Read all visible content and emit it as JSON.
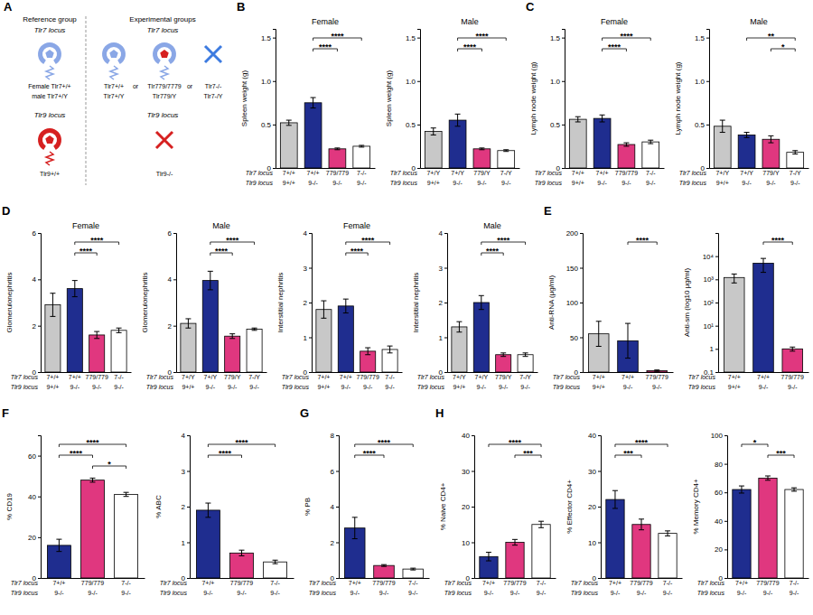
{
  "diagram": {
    "panel_label": "A",
    "reference": {
      "title": "Reference group",
      "tlr7_locus": "Tlr7 locus",
      "tlr7_genotypes": [
        "Female Tlr7+/+",
        "male Tlr7+/Y"
      ],
      "tlr9_locus": "Tlr9 locus",
      "tlr9_genotype": "Tlr9+/+"
    },
    "experimental": {
      "title": "Experimental groups",
      "tlr7_locus": "Tlr7 locus",
      "tlr7_genotypes": [
        [
          "Tlr7+/+",
          "Tlr7+/Y"
        ],
        [
          "Tlr779/7779",
          "Tlr779/Y"
        ],
        [
          "Tlr7-/-",
          "Tlr7-/Y"
        ]
      ],
      "or": "or",
      "tlr9_locus": "Tlr9 locus",
      "tlr9_genotype": "Tlr9-/-"
    }
  },
  "chart_data": [
    {
      "type": "bar",
      "panel_label": "B",
      "title": "Female",
      "y_label": "Spleen weight (g)",
      "row_labels": [
        "Tlr7 locus",
        "Tlr9 locus"
      ],
      "categories": [
        "7+/+",
        "7+/+",
        "779/779",
        "7-/-"
      ],
      "categories2": [
        "9+/+",
        "9-/-",
        "9-/-",
        "9-/-"
      ],
      "values": [
        0.52,
        0.75,
        0.22,
        0.25
      ],
      "errors": [
        0.03,
        0.06,
        0.01,
        0.01
      ],
      "colors": [
        "#c8c8c8",
        "#1f2d8f",
        "#e0377f",
        "#ffffff"
      ],
      "ylim": [
        0,
        1.6
      ],
      "yticks": [
        0,
        0.5,
        {
          "value": 1,
          "label": "1.0"
        },
        1.5
      ],
      "significance": [
        {
          "from": 1,
          "to": 3,
          "label": "****"
        },
        {
          "from": 1,
          "to": 2,
          "label": "****"
        }
      ]
    },
    {
      "type": "bar",
      "title": "Male",
      "y_label": "Spleen weight (g)",
      "row_labels": [
        "Tlr7 locus",
        "Tlr9 locus"
      ],
      "categories": [
        "7+/Y",
        "7+/Y",
        "779/Y",
        "7-/Y"
      ],
      "categories2": [
        "9+/+",
        "9-/-",
        "9-/-",
        "9-/-"
      ],
      "values": [
        0.42,
        0.55,
        0.22,
        0.2
      ],
      "errors": [
        0.04,
        0.07,
        0.01,
        0.01
      ],
      "colors": [
        "#c8c8c8",
        "#1f2d8f",
        "#e0377f",
        "#ffffff"
      ],
      "ylim": [
        0,
        1.6
      ],
      "yticks": [
        0,
        0.5,
        {
          "value": 1,
          "label": "1.0"
        },
        1.5
      ],
      "significance": [
        {
          "from": 1,
          "to": 3,
          "label": "****"
        },
        {
          "from": 1,
          "to": 2,
          "label": "****"
        }
      ]
    },
    {
      "type": "bar",
      "panel_label": "C",
      "title": "Female",
      "y_label": "Lymph node weight (g)",
      "row_labels": [
        "Tlr7 locus",
        "Tlr9 locus"
      ],
      "categories": [
        "7+/+",
        "7+/+",
        "779/779",
        "7-/-"
      ],
      "categories2": [
        "9+/+",
        "9-/-",
        "9-/-",
        "9-/-"
      ],
      "values": [
        0.56,
        0.57,
        0.27,
        0.3
      ],
      "errors": [
        0.03,
        0.04,
        0.02,
        0.02
      ],
      "colors": [
        "#c8c8c8",
        "#1f2d8f",
        "#e0377f",
        "#ffffff"
      ],
      "ylim": [
        0,
        1.6
      ],
      "yticks": [
        0,
        0.5,
        {
          "value": 1,
          "label": "1.0"
        },
        1.5
      ],
      "significance": [
        {
          "from": 1,
          "to": 3,
          "label": "****"
        },
        {
          "from": 1,
          "to": 2,
          "label": "****"
        }
      ]
    },
    {
      "type": "bar",
      "title": "Male",
      "y_label": "Lymph node weight (g)",
      "row_labels": [
        "Tlr7 locus",
        "Tlr9 locus"
      ],
      "categories": [
        "7+/Y",
        "7+/Y",
        "779/Y",
        "7-/Y"
      ],
      "categories2": [
        "9+/+",
        "9-/-",
        "9-/-",
        "9-/-"
      ],
      "values": [
        0.48,
        0.38,
        0.33,
        0.18
      ],
      "errors": [
        0.07,
        0.03,
        0.04,
        0.02
      ],
      "colors": [
        "#c8c8c8",
        "#1f2d8f",
        "#e0377f",
        "#ffffff"
      ],
      "ylim": [
        0,
        1.6
      ],
      "yticks": [
        0,
        0.5,
        {
          "value": 1,
          "label": "1.0"
        },
        1.5
      ],
      "significance": [
        {
          "from": 1,
          "to": 3,
          "label": "**"
        },
        {
          "from": 2,
          "to": 3,
          "label": "*"
        }
      ]
    },
    {
      "type": "bar",
      "panel_label": "D",
      "title": "Female",
      "y_label": "Glomerulonephritis",
      "row_labels": [
        "Tlr7 locus",
        "Tlr9 locus"
      ],
      "categories": [
        "7+/+",
        "7+/+",
        "779/779",
        "7-/-"
      ],
      "categories2": [
        "9+/+",
        "9-/-",
        "9-/-",
        "9-/-"
      ],
      "values": [
        2.9,
        3.6,
        1.6,
        1.8
      ],
      "errors": [
        0.5,
        0.35,
        0.15,
        0.1
      ],
      "colors": [
        "#c8c8c8",
        "#1f2d8f",
        "#e0377f",
        "#ffffff"
      ],
      "ylim": [
        0,
        6
      ],
      "yticks": [
        0,
        2,
        4,
        6
      ],
      "significance": [
        {
          "from": 1,
          "to": 3,
          "label": "****"
        },
        {
          "from": 1,
          "to": 2,
          "label": "****"
        }
      ]
    },
    {
      "type": "bar",
      "title": "Male",
      "y_label": "Glomerulonephritis",
      "row_labels": [
        "Tlr7 locus",
        "Tlr9 locus"
      ],
      "categories": [
        "7+/Y",
        "7+/Y",
        "779/Y",
        "7-/Y"
      ],
      "categories2": [
        "9+/+",
        "9-/-",
        "9-/-",
        "9-/-"
      ],
      "values": [
        2.1,
        3.95,
        1.55,
        1.85
      ],
      "errors": [
        0.2,
        0.4,
        0.1,
        0.05
      ],
      "colors": [
        "#c8c8c8",
        "#1f2d8f",
        "#e0377f",
        "#ffffff"
      ],
      "ylim": [
        0,
        6
      ],
      "yticks": [
        0,
        2,
        4,
        6
      ],
      "significance": [
        {
          "from": 1,
          "to": 3,
          "label": "****"
        },
        {
          "from": 1,
          "to": 2,
          "label": "****"
        }
      ]
    },
    {
      "type": "bar",
      "title": "Female",
      "y_label": "Interstitial nephritis",
      "row_labels": [
        "Tlr7 locus",
        "Tlr9 locus"
      ],
      "categories": [
        "7+/+",
        "7+/+",
        "779/779",
        "7-/-"
      ],
      "categories2": [
        "9+/+",
        "9-/-",
        "9-/-",
        "9-/-"
      ],
      "values": [
        1.8,
        1.9,
        0.6,
        0.65
      ],
      "errors": [
        0.25,
        0.2,
        0.1,
        0.1
      ],
      "colors": [
        "#c8c8c8",
        "#1f2d8f",
        "#e0377f",
        "#ffffff"
      ],
      "ylim": [
        0,
        4
      ],
      "yticks": [
        0,
        1,
        2,
        3,
        4
      ],
      "significance": [
        {
          "from": 1,
          "to": 3,
          "label": "****"
        },
        {
          "from": 1,
          "to": 2,
          "label": "****"
        }
      ]
    },
    {
      "type": "bar",
      "title": "Male",
      "y_label": "Interstitial nephritis",
      "row_labels": [
        "Tlr7 locus",
        "Tlr9 locus"
      ],
      "categories": [
        "7+/Y",
        "7+/Y",
        "779/Y",
        "7-/Y"
      ],
      "categories2": [
        "9+/+",
        "9-/-",
        "9-/-",
        "9-/-"
      ],
      "values": [
        1.3,
        2.0,
        0.5,
        0.5
      ],
      "errors": [
        0.15,
        0.2,
        0.05,
        0.05
      ],
      "colors": [
        "#c8c8c8",
        "#1f2d8f",
        "#e0377f",
        "#ffffff"
      ],
      "ylim": [
        0,
        4
      ],
      "yticks": [
        0,
        1,
        2,
        3,
        4
      ],
      "significance": [
        {
          "from": 1,
          "to": 3,
          "label": "****"
        },
        {
          "from": 1,
          "to": 2,
          "label": "****"
        }
      ]
    },
    {
      "type": "bar",
      "panel_label": "E",
      "y_label": "Anti-RNA (μg/ml)",
      "row_labels": [
        "Tlr7 locus",
        "Tlr9 locus"
      ],
      "categories": [
        "7+/+",
        "7+/+",
        "779/779"
      ],
      "categories2": [
        "9+/+",
        "9-/-",
        "9-/-"
      ],
      "values": [
        55,
        45,
        2
      ],
      "errors": [
        18,
        25,
        1
      ],
      "colors": [
        "#c8c8c8",
        "#1f2d8f",
        "#e0377f"
      ],
      "ylim": [
        0,
        200
      ],
      "yticks": [
        0,
        50,
        100,
        150,
        200
      ],
      "significance": [
        {
          "from": 1,
          "to": 2,
          "label": "****"
        }
      ]
    },
    {
      "type": "bar",
      "y_label": "Anti-sm (log10 μg/ml)",
      "row_labels": [
        "Tlr7 locus",
        "Tlr9 locus"
      ],
      "log": "y",
      "categories": [
        "7+/+",
        "7+/+",
        "779/779"
      ],
      "categories2": [
        "9+/+",
        "9-/-",
        "9-/-"
      ],
      "values": [
        1200,
        5000,
        1
      ],
      "errors": [
        500,
        3000,
        0.2
      ],
      "colors": [
        "#c8c8c8",
        "#1f2d8f",
        "#e0377f"
      ],
      "ylim": [
        0.1,
        100000
      ],
      "yticks": [
        0.1,
        1,
        {
          "value": 10,
          "label": "10¹"
        },
        {
          "value": 100,
          "label": "10²"
        },
        {
          "value": 1000,
          "label": "10³"
        },
        {
          "value": 10000,
          "label": "10⁴"
        }
      ],
      "significance": [
        {
          "from": 1,
          "to": 2,
          "label": "****"
        }
      ]
    },
    {
      "type": "bar",
      "panel_label": "F",
      "y_label": "% CD19",
      "row_labels": [
        "Tlr7 locus",
        "Tlr9 locus"
      ],
      "categories": [
        "7+/+",
        "779/779",
        "7-/-"
      ],
      "categories2": [
        "9-/-",
        "9-/-",
        "9-/-"
      ],
      "values": [
        16,
        48,
        41
      ],
      "errors": [
        3,
        1,
        1
      ],
      "colors": [
        "#1f2d8f",
        "#e0377f",
        "#ffffff"
      ],
      "ylim": [
        0,
        70
      ],
      "yticks": [
        0,
        20,
        40,
        60
      ],
      "significance": [
        {
          "from": 0,
          "to": 2,
          "label": "****"
        },
        {
          "from": 0,
          "to": 1,
          "label": "****"
        },
        {
          "from": 1,
          "to": 2,
          "label": "*"
        }
      ]
    },
    {
      "type": "bar",
      "y_label": "% ABC",
      "row_labels": [
        "Tlr7 locus",
        "Tlr9 locus"
      ],
      "categories": [
        "7+/+",
        "779/779",
        "7-/-"
      ],
      "categories2": [
        "9-/-",
        "9-/-",
        "9-/-"
      ],
      "values": [
        1.9,
        0.7,
        0.45
      ],
      "errors": [
        0.2,
        0.08,
        0.05
      ],
      "colors": [
        "#1f2d8f",
        "#e0377f",
        "#ffffff"
      ],
      "ylim": [
        0,
        4
      ],
      "yticks": [
        0,
        1,
        2,
        3,
        4
      ],
      "significance": [
        {
          "from": 0,
          "to": 2,
          "label": "****"
        },
        {
          "from": 0,
          "to": 1,
          "label": "****"
        }
      ]
    },
    {
      "type": "bar",
      "panel_label": "G",
      "y_label": "% PB",
      "row_labels": [
        "Tlr7 locus",
        "Tlr9 locus"
      ],
      "categories": [
        "7+/+",
        "779/779",
        "7-/-"
      ],
      "categories2": [
        "9-/-",
        "9-/-",
        "9-/-"
      ],
      "values": [
        2.8,
        0.7,
        0.5
      ],
      "errors": [
        0.6,
        0.05,
        0.05
      ],
      "colors": [
        "#1f2d8f",
        "#e0377f",
        "#ffffff"
      ],
      "ylim": [
        0,
        8
      ],
      "yticks": [
        0,
        2,
        4,
        6,
        8
      ],
      "significance": [
        {
          "from": 0,
          "to": 2,
          "label": "****"
        },
        {
          "from": 0,
          "to": 1,
          "label": "****"
        }
      ]
    },
    {
      "type": "bar",
      "panel_label": "H",
      "y_label": "% Naive CD4+",
      "row_labels": [
        "Tlr7 locus",
        "Tlr9 locus"
      ],
      "categories": [
        "7+/+",
        "779/779",
        "7-/-"
      ],
      "categories2": [
        "9-/-",
        "9-/-",
        "9-/-"
      ],
      "values": [
        6,
        10,
        15
      ],
      "errors": [
        1.2,
        0.8,
        0.9
      ],
      "colors": [
        "#1f2d8f",
        "#e0377f",
        "#ffffff"
      ],
      "ylim": [
        0,
        40
      ],
      "yticks": [
        0,
        10,
        20,
        30,
        40
      ],
      "significance": [
        {
          "from": 0,
          "to": 2,
          "label": "****"
        },
        {
          "from": 1,
          "to": 2,
          "label": "***"
        }
      ]
    },
    {
      "type": "bar",
      "y_label": "% Effector CD4+",
      "row_labels": [
        "Tlr7 locus",
        "Tlr9 locus"
      ],
      "categories": [
        "7+/+",
        "779/779",
        "7-/-"
      ],
      "categories2": [
        "9-/-",
        "9-/-",
        "9-/-"
      ],
      "values": [
        22,
        15,
        12.5
      ],
      "errors": [
        2.5,
        1.5,
        0.7
      ],
      "colors": [
        "#1f2d8f",
        "#e0377f",
        "#ffffff"
      ],
      "ylim": [
        0,
        40
      ],
      "yticks": [
        0,
        10,
        20,
        30,
        40
      ],
      "significance": [
        {
          "from": 0,
          "to": 2,
          "label": "****"
        },
        {
          "from": 0,
          "to": 1,
          "label": "***"
        }
      ]
    },
    {
      "type": "bar",
      "y_label": "% Memory CD4+",
      "row_labels": [
        "Tlr7 locus",
        "Tlr9 locus"
      ],
      "categories": [
        "7+/+",
        "779/779",
        "7-/-"
      ],
      "categories2": [
        "9-/-",
        "9-/-",
        "9-/-"
      ],
      "values": [
        62,
        70,
        62
      ],
      "errors": [
        2.5,
        1.5,
        1.2
      ],
      "colors": [
        "#1f2d8f",
        "#e0377f",
        "#ffffff"
      ],
      "ylim": [
        0,
        100
      ],
      "yticks": [
        0,
        20,
        40,
        60,
        80,
        100
      ],
      "significance": [
        {
          "from": 0,
          "to": 1,
          "label": "*"
        },
        {
          "from": 1,
          "to": 2,
          "label": "***"
        }
      ]
    }
  ]
}
